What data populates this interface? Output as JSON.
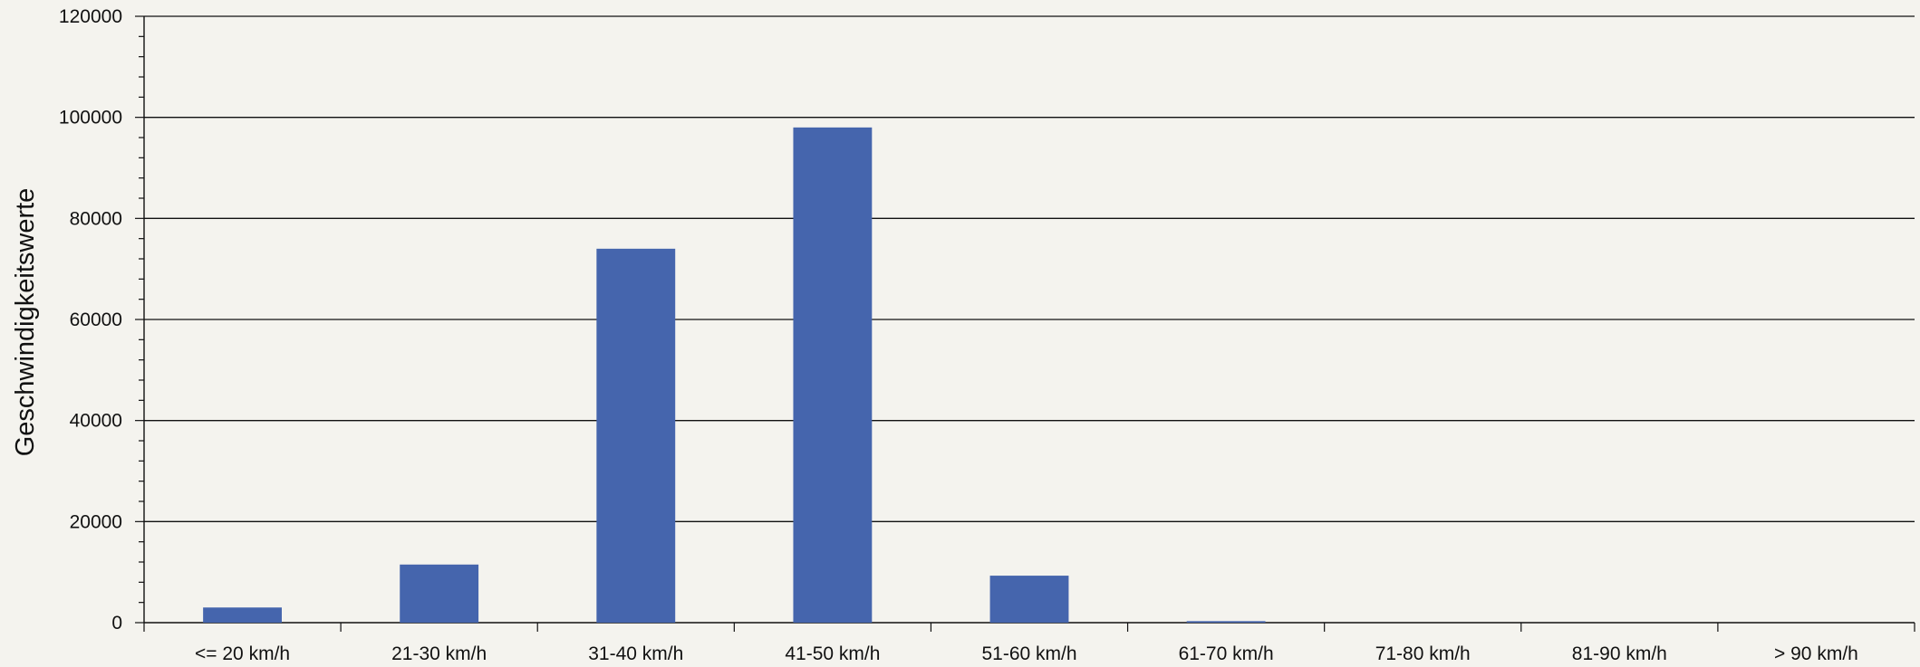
{
  "chart_data": {
    "type": "bar",
    "title": "",
    "xlabel": "",
    "ylabel": "Geschwindigkeitswerte",
    "ylim": [
      0,
      120000
    ],
    "yticks": [
      0,
      20000,
      40000,
      60000,
      80000,
      100000,
      120000
    ],
    "grid": true,
    "legend": "none",
    "categories": [
      "<= 20 km/h",
      "21-30 km/h",
      "31-40 km/h",
      "41-50 km/h",
      "51-60 km/h",
      "61-70 km/h",
      "71-80 km/h",
      "81-90 km/h",
      "> 90 km/h"
    ],
    "series": [
      {
        "values": [
          3000,
          11500,
          74000,
          98000,
          9300,
          300,
          0,
          0,
          0
        ]
      }
    ],
    "colors": {
      "bar": "#4565ad",
      "grid": "#111111",
      "background": "#f4f3ee"
    }
  }
}
